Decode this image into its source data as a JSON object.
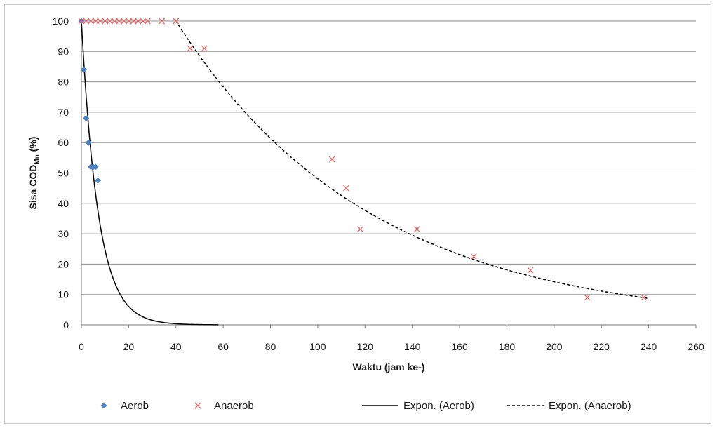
{
  "chart_data": {
    "type": "scatter",
    "title": "",
    "xlabel": "Waktu (jam ke-)",
    "ylabel_main": "Sisa COD",
    "ylabel_sub": "Mn",
    "ylabel_unit": " (%)",
    "xlim": [
      0,
      260
    ],
    "ylim": [
      0,
      100
    ],
    "x_ticks": [
      0,
      20,
      40,
      60,
      80,
      100,
      120,
      140,
      160,
      180,
      200,
      220,
      240,
      260
    ],
    "y_ticks": [
      0,
      10,
      20,
      30,
      40,
      50,
      60,
      70,
      80,
      90,
      100
    ],
    "grid": "horizontal",
    "legend_position": "bottom",
    "colors": {
      "aerob": "#4f81bd",
      "anaerob": "#e46c6c",
      "trend": "#000000",
      "grid": "#8c8c8c"
    },
    "series": [
      {
        "name": "Aerob",
        "marker": "diamond",
        "x": [
          0,
          1,
          2,
          3,
          4,
          5,
          6,
          7
        ],
        "y": [
          100,
          84,
          68,
          60,
          52,
          52,
          52,
          47.5
        ]
      },
      {
        "name": "Anaerob",
        "marker": "x",
        "x": [
          0,
          2,
          4,
          6,
          8,
          10,
          12,
          14,
          16,
          18,
          20,
          22,
          24,
          26,
          28,
          34,
          40,
          46,
          52,
          106,
          112,
          118,
          142,
          166,
          190,
          214,
          238
        ],
        "y": [
          100,
          100,
          100,
          100,
          100,
          100,
          100,
          100,
          100,
          100,
          100,
          100,
          100,
          100,
          100,
          100,
          100,
          91,
          91,
          54.5,
          45,
          31.5,
          31.5,
          22.5,
          18,
          9,
          9
        ]
      }
    ],
    "trendlines": [
      {
        "name": "Expon. (Aerob)",
        "style": "solid",
        "a": 100,
        "b": 0.14,
        "x_from": 0,
        "x_to": 58
      },
      {
        "name": "Expon. (Anaerob)",
        "style": "dashed",
        "a": 100,
        "b": 0.0122,
        "x_from": 40,
        "x_to": 240,
        "offset": 40
      }
    ]
  }
}
